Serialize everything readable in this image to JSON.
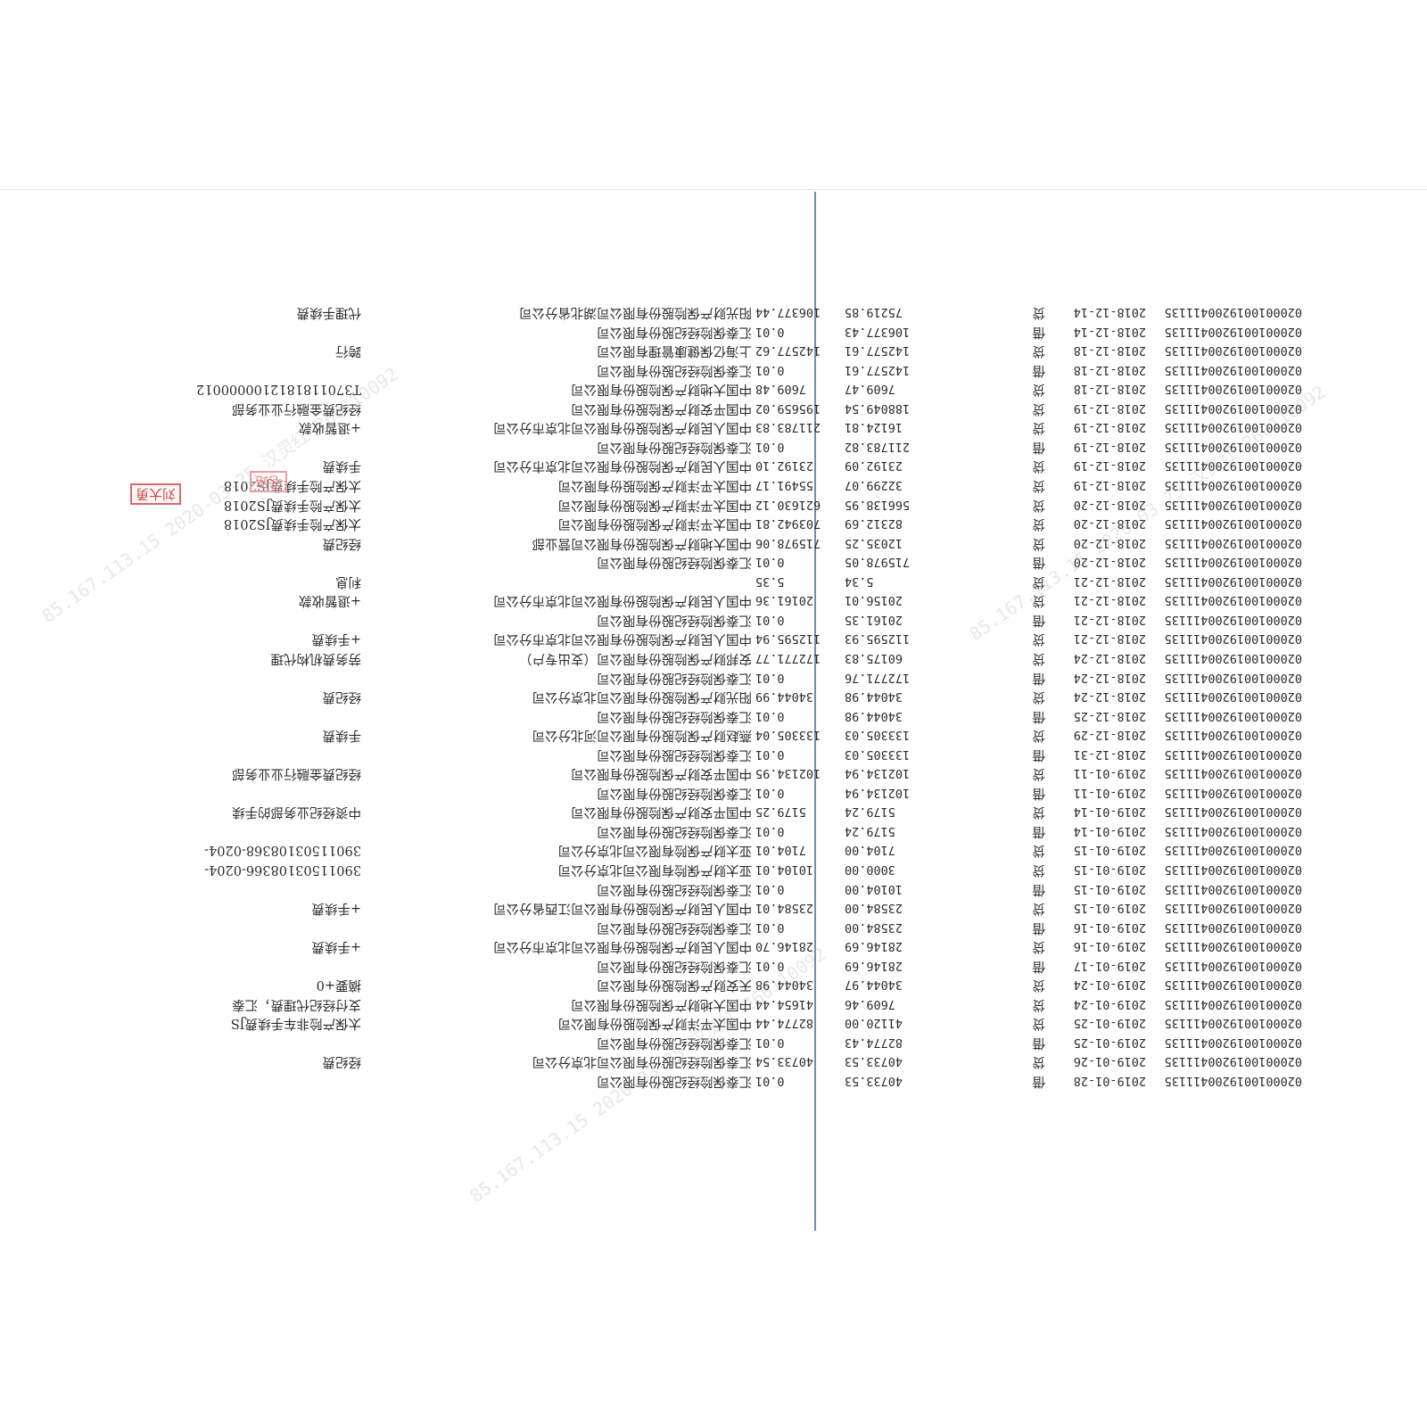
{
  "stamps": [
    {
      "text": "刘大勇"
    },
    {
      "text": "老路"
    }
  ],
  "watermarks": [
    "85.167.113.15 2020-03-25 汉灵红 260110092",
    "85.167.113.15 2020-03-25 汉灵红 260110092",
    "85.167.113.15 2020-03-25 汉灵红 260110092"
  ],
  "rows": [
    {
      "account": "020001001920041113​5",
      "date": "2019-01-28",
      "dir": "借",
      "amount": "40733.53",
      "balance": "0.01",
      "counterparty": "汇泰保险经纪股份有限公司",
      "memo": ""
    },
    {
      "account": "0200010019200411135",
      "date": "2019-01-26",
      "dir": "贷",
      "amount": "40733.53",
      "balance": "40733.54",
      "counterparty": "汇泰保险经纪股份有限公司北京分公司",
      "memo": "经纪费"
    },
    {
      "account": "0200010019200411135",
      "date": "2019-01-25",
      "dir": "借",
      "amount": "82774.43",
      "balance": "0.01",
      "counterparty": "汇泰保险经纪股份有限公司",
      "memo": ""
    },
    {
      "account": "0200010019200411135",
      "date": "2019-01-25",
      "dir": "贷",
      "amount": "41120.00",
      "balance": "82774.44",
      "counterparty": "中国太平洋财产保险股份有限公司",
      "memo": "太保产险非车手续费JS"
    },
    {
      "account": "0200010019200411135",
      "date": "2019-01-24",
      "dir": "贷",
      "amount": "7609.46",
      "balance": "41654.44",
      "counterparty": "中国大地财产保险股份有限公司",
      "memo": "支付经纪代理费，汇泰"
    },
    {
      "account": "0200010019200411135",
      "date": "2019-01-24",
      "dir": "贷",
      "amount": "34044.97",
      "balance": "34044.98",
      "counterparty": "天安财产保险股份有限公司",
      "memo": "摘要+0"
    },
    {
      "account": "0200010019200411135",
      "date": "2019-01-17",
      "dir": "借",
      "amount": "28146.69",
      "balance": "0.01",
      "counterparty": "汇泰保险经纪股份有限公司",
      "memo": ""
    },
    {
      "account": "0200010019200411135",
      "date": "2019-01-16",
      "dir": "贷",
      "amount": "28146.69",
      "balance": "28146.70",
      "counterparty": "中国人民财产保险股份有限公司北京市分公司",
      "memo": "+手续费"
    },
    {
      "account": "0200010019200411135",
      "date": "2019-01-16",
      "dir": "借",
      "amount": "23584.00",
      "balance": "0.01",
      "counterparty": "汇泰保险经纪股份有限公司",
      "memo": ""
    },
    {
      "account": "0200010019200411135",
      "date": "2019-01-15",
      "dir": "贷",
      "amount": "23584.00",
      "balance": "23584.01",
      "counterparty": "中国人民财产保险股份有限公司江西省分公司",
      "memo": "+手续费"
    },
    {
      "account": "0200010019200411135",
      "date": "2019-01-15",
      "dir": "借",
      "amount": "10104.00",
      "balance": "0.01",
      "counterparty": "汇泰保险经纪股份有限公司",
      "memo": ""
    },
    {
      "account": "0200010019200411135",
      "date": "2019-01-15",
      "dir": "贷",
      "amount": "3000.00",
      "balance": "10104.01",
      "counterparty": "亚太财产保险有限公司北京分公司",
      "memo": "3901150310836​6-0204-"
    },
    {
      "account": "0200010019200411135",
      "date": "2019-01-15",
      "dir": "贷",
      "amount": "7104.00",
      "balance": "7104.01",
      "counterparty": "亚太财产保险有限公司北京分公司",
      "memo": "39011503108368-0204-"
    },
    {
      "account": "0200010019200411135",
      "date": "2019-01-14",
      "dir": "借",
      "amount": "5179.24",
      "balance": "0.01",
      "counterparty": "汇泰保险经纪股份有限公司",
      "memo": ""
    },
    {
      "account": "0200010019200411135",
      "date": "2019-01-14",
      "dir": "贷",
      "amount": "5179.24",
      "balance": "5179.25",
      "counterparty": "中国平安财产保险股份有限公司",
      "memo": "中资经纪业务部的手续"
    },
    {
      "account": "0200010019200411135",
      "date": "2019-01-11",
      "dir": "借",
      "amount": "102134.94",
      "balance": "0.01",
      "counterparty": "汇泰保险经纪股份有限公司",
      "memo": ""
    },
    {
      "account": "0200010019200411135",
      "date": "2019-01-11",
      "dir": "贷",
      "amount": "102134.94",
      "balance": "102134.95",
      "counterparty": "中国平安财产保险股份有限公司",
      "memo": "经纪费金融行业业务部"
    },
    {
      "account": "0200010019200411135",
      "date": "2018-12-31",
      "dir": "借",
      "amount": "133305.03",
      "balance": "0.01",
      "counterparty": "汇泰保险经纪股份有限公司",
      "memo": ""
    },
    {
      "account": "0200010019200411135",
      "date": "2018-12-29",
      "dir": "贷",
      "amount": "133305.03",
      "balance": "133305.04",
      "counterparty": "燕赵财产保险股份有限公司河北分公司",
      "memo": "手续费"
    },
    {
      "account": "0200010019200411135",
      "date": "2018-12-25",
      "dir": "借",
      "amount": "34044.98",
      "balance": "0.01",
      "counterparty": "汇泰保险经纪股份有限公司",
      "memo": ""
    },
    {
      "account": "0200010019200411135",
      "date": "2018-12-24",
      "dir": "贷",
      "amount": "34044.98",
      "balance": "34044.99",
      "counterparty": "阳光财产保险股份有限公司北京分公司",
      "memo": "经纪费"
    },
    {
      "account": "0200010019200411135",
      "date": "2018-12-24",
      "dir": "借",
      "amount": "172771.76",
      "balance": "0.01",
      "counterparty": "汇泰保险经纪股份有限公司",
      "memo": ""
    },
    {
      "account": "0200010019200411135",
      "date": "2018-12-24",
      "dir": "贷",
      "amount": "60175.83",
      "balance": "172771.77",
      "counterparty": "安邦财产保险股份有限公司（支出专户）",
      "memo": "劳务费机构代理"
    },
    {
      "account": "0200010019200411135",
      "date": "2018-12-21",
      "dir": "贷",
      "amount": "112595.93",
      "balance": "112595.94",
      "counterparty": "中国人民财产保险股份有限公司北京市分公司",
      "memo": "+手续费"
    },
    {
      "account": "0200010019200411135",
      "date": "2018-12-21",
      "dir": "借",
      "amount": "20161.35",
      "balance": "0.01",
      "counterparty": "汇泰保险经纪股份有限公司",
      "memo": ""
    },
    {
      "account": "0200010019200411135",
      "date": "2018-12-21",
      "dir": "贷",
      "amount": "20156.01",
      "balance": "20161.36",
      "counterparty": "中国人民财产保险股份有限公司北京市分公司",
      "memo": "+退暂收款"
    },
    {
      "account": "0200010019200411135",
      "date": "2018-12-21",
      "dir": "贷",
      "amount": "5.34",
      "balance": "5.35",
      "counterparty": "",
      "memo": "利息"
    },
    {
      "account": "0200010019200411135",
      "date": "2018-12-20",
      "dir": "借",
      "amount": "715978.05",
      "balance": "0.01",
      "counterparty": "汇泰保险经纪股份有限公司",
      "memo": ""
    },
    {
      "account": "0200010019200411135",
      "date": "2018-12-20",
      "dir": "贷",
      "amount": "12035.25",
      "balance": "715978.06",
      "counterparty": "中国大地财产保险股份有限公司营业部",
      "memo": "经纪费"
    },
    {
      "account": "0200010019200411135",
      "date": "2018-12-20",
      "dir": "贷",
      "amount": "82312.69",
      "balance": "703942.81",
      "counterparty": "中国太平洋财产保险股份有限公司",
      "memo": "太保产险手续费JS2018"
    },
    {
      "account": "0200010019200411135",
      "date": "2018-12-20",
      "dir": "贷",
      "amount": "566138.95",
      "balance": "621630.12",
      "counterparty": "中国太平洋财产保险股份有限公司",
      "memo": "太保产险手续费JS2018"
    },
    {
      "account": "0200010019200411135",
      "date": "2018-12-19",
      "dir": "贷",
      "amount": "32299.07",
      "balance": "55491.17",
      "counterparty": "中国太平洋财产保险股份有限公司",
      "memo": "太保产险手续费JS2018"
    },
    {
      "account": "0200010019200411135",
      "date": "2018-12-19",
      "dir": "贷",
      "amount": "23192.09",
      "balance": "23192.10",
      "counterparty": "中国人民财产保险股份有限公司北京市分公司",
      "memo": "手续费"
    },
    {
      "account": "0200010019200411135",
      "date": "2018-12-19",
      "dir": "借",
      "amount": "211783.82",
      "balance": "0.01",
      "counterparty": "汇泰保险经纪股份有限公司",
      "memo": ""
    },
    {
      "account": "0200010019200411135",
      "date": "2018-12-19",
      "dir": "贷",
      "amount": "16124.81",
      "balance": "211783.83",
      "counterparty": "中国人民财产保险股份有限公司北京市分公司",
      "memo": "+退暂收款"
    },
    {
      "account": "0200010019200411135",
      "date": "2018-12-19",
      "dir": "贷",
      "amount": "188049.54",
      "balance": "195659.02",
      "counterparty": "中国平安财产保险股份有限公司",
      "memo": "经纪费金融行业业务部"
    },
    {
      "account": "0200010019200411135",
      "date": "2018-12-18",
      "dir": "贷",
      "amount": "7609.47",
      "balance": "7609.48",
      "counterparty": "中国大地财产保险股份有限公司",
      "memo": "T3701181812100000012"
    },
    {
      "account": "0200010019200411135",
      "date": "2018-12-18",
      "dir": "借",
      "amount": "142577.61",
      "balance": "0.01",
      "counterparty": "汇泰保险经纪股份有限公司",
      "memo": ""
    },
    {
      "account": "0200010019200411135",
      "date": "2018-12-18",
      "dir": "贷",
      "amount": "142577.61",
      "balance": "142577.62",
      "counterparty": "上海亿保健康管理有限公司",
      "memo": "跨行"
    },
    {
      "account": "0200010019200411135",
      "date": "2018-12-14",
      "dir": "借",
      "amount": "106377.43",
      "balance": "0.01",
      "counterparty": "汇泰保险经纪股份有限公司",
      "memo": ""
    },
    {
      "account": "0200010019200411135",
      "date": "2018-12-14",
      "dir": "贷",
      "amount": "75219.85",
      "balance": "106377.44",
      "counterparty": "阳光财产保险股份有限公司湖北省分公司",
      "memo": "代理手续费"
    }
  ]
}
